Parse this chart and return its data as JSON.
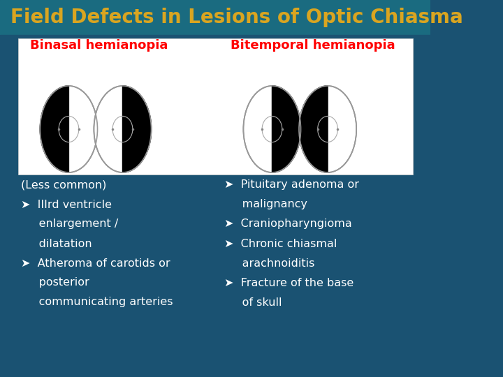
{
  "title": "Field Defects in Lesions of Optic Chiasma",
  "title_color": "#DAA520",
  "title_fontsize": 20,
  "bg_color_top": "#1a5f7a",
  "bg_color_bottom": "#1a4a6b",
  "slide_bg": "#1a5272",
  "white_box_color": "#ffffff",
  "label_binasal": "Binasal hemianopia",
  "label_bitemporal": "Bitemporal hemianopia",
  "label_color": "#ff0000",
  "label_fontsize": 13,
  "left_col_lines": [
    "(Less common)",
    "Ø  IIIrd ventricle",
    "     enlargement /",
    "     dilatation",
    "Ø  Atheroma of carotids or",
    "     posterior",
    "     communicating arteries"
  ],
  "right_col_lines": [
    "Ø  Pituitary adenoma or",
    "     malignancy",
    "Ø  Craniopharyngioma",
    "Ø  Chronic chiasmal",
    "     arachnoiditis",
    "Ø  Fracture of the base",
    "     of skull"
  ],
  "text_color": "#ffffff",
  "text_fontsize": 11.5
}
